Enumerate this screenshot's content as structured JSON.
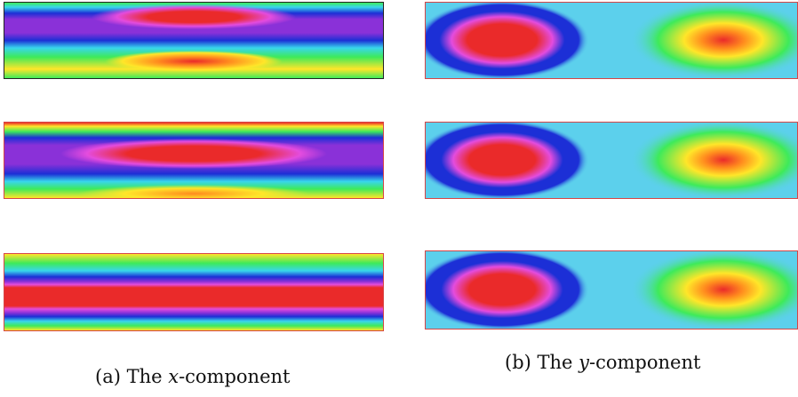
{
  "captions": {
    "a": {
      "prefix": "(a) The ",
      "var": "x",
      "suffix": "-component"
    },
    "b": {
      "prefix": "(b) The ",
      "var": "y",
      "suffix": "-component"
    }
  },
  "colormap": {
    "red": "#ea2a2a",
    "magenta": "#e44cde",
    "purple": "#8a31d8",
    "blue": "#1c2fd6",
    "cyan": "#38d6ec",
    "light_cyan": "#5cd0ec",
    "green": "#3eea5a",
    "yellow": "#ffe629",
    "orange": "#ff8a1e"
  },
  "panels": [
    {
      "id": "x-panel-1",
      "component": "x",
      "border": "#222222"
    },
    {
      "id": "x-panel-2",
      "component": "x",
      "border": "#d64545"
    },
    {
      "id": "x-panel-3",
      "component": "x",
      "border": "#d64545"
    },
    {
      "id": "y-panel-1",
      "component": "y",
      "border": "#d64545"
    },
    {
      "id": "y-panel-2",
      "component": "y",
      "border": "#d64545"
    },
    {
      "id": "y-panel-3",
      "component": "y",
      "border": "#d64545"
    }
  ]
}
